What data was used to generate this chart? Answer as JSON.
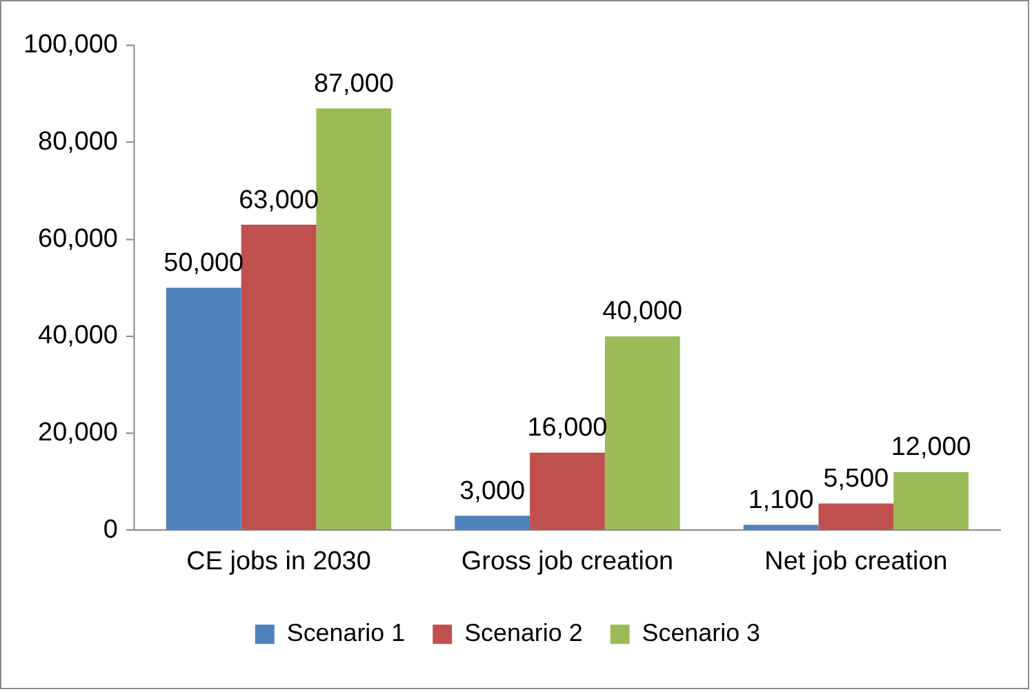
{
  "chart_data": {
    "type": "bar",
    "categories": [
      "CE jobs in 2030",
      "Gross job creation",
      "Net job creation"
    ],
    "series": [
      {
        "name": "Scenario 1",
        "color": "#4f81bd",
        "values": [
          50000,
          3000,
          1100
        ],
        "value_labels": [
          "50,000",
          "3,000",
          "1,100"
        ]
      },
      {
        "name": "Scenario 2",
        "color": "#c0504d",
        "values": [
          63000,
          16000,
          5500
        ],
        "value_labels": [
          "63,000",
          "16,000",
          "5,500"
        ]
      },
      {
        "name": "Scenario 3",
        "color": "#9bbb59",
        "values": [
          87000,
          40000,
          12000
        ],
        "value_labels": [
          "87,000",
          "40,000",
          "12,000"
        ]
      }
    ],
    "ylim": [
      0,
      100000
    ],
    "yticks": [
      0,
      {
        "value": 20000,
        "label": "20,000"
      },
      {
        "value": 40000,
        "label": "40,000"
      },
      {
        "value": 60000,
        "label": "60,000"
      },
      {
        "value": 80000,
        "label": "80,000"
      },
      {
        "value": 100000,
        "label": "100,000"
      }
    ],
    "grid": false,
    "legend": "bottom"
  }
}
